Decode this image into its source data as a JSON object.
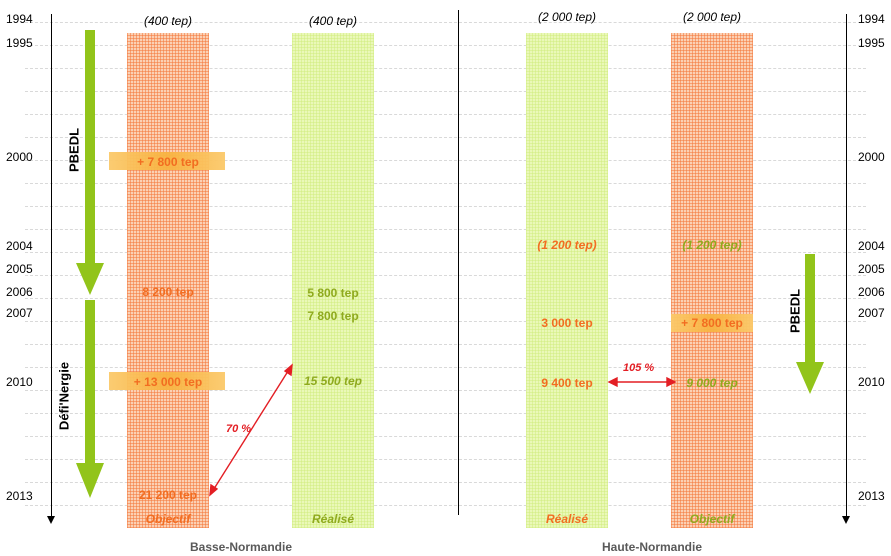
{
  "years_left": [
    "1994",
    "1995",
    "2000",
    "2004",
    "2005",
    "2006",
    "2007",
    "2010",
    "2013"
  ],
  "years_right": [
    "1994",
    "1995",
    "2000",
    "2004",
    "2005",
    "2006",
    "2007",
    "2010",
    "2013"
  ],
  "programs": {
    "left_top": "PBEDL",
    "left_bottom": "Défi'Nergie",
    "right": "PBEDL"
  },
  "basse_normandie": {
    "name": "Basse-Normandie",
    "objectif": {
      "header": "(400 tep)",
      "v2000": "+ 7 800 tep",
      "v2006": "8 200 tep",
      "v2010": "+ 13 000 tep",
      "v2013": "21 200 tep",
      "label": "Objectif"
    },
    "realise": {
      "header": "(400 tep)",
      "v2006": "5 800 tep",
      "v2007": "7 800 tep",
      "v2010": "15 500 tep",
      "label": "Réalisé"
    }
  },
  "haute_normandie": {
    "name": "Haute-Normandie",
    "realise": {
      "header": "(2 000 tep)",
      "v2004": "(1 200 tep)",
      "v2007": "3 000 tep",
      "v2010": "9 400 tep",
      "label": "Réalisé"
    },
    "objectif": {
      "header": "(2 000 tep)",
      "v2004": "(1 200 tep)",
      "v2007": "+ 7 800 tep",
      "v2010": "9 000 tep",
      "label": "Objectif"
    }
  },
  "ratios": {
    "basse_normandie": "70 %",
    "haute_normandie": "105 %"
  },
  "colors": {
    "objectif_column": "#fbd0b4",
    "realise_column": "#eaf8b8",
    "program_arrow": "#92c41a",
    "ratio_arrow": "#e31e24",
    "orange_text": "#f26d21",
    "green_text": "#8faa1e"
  }
}
